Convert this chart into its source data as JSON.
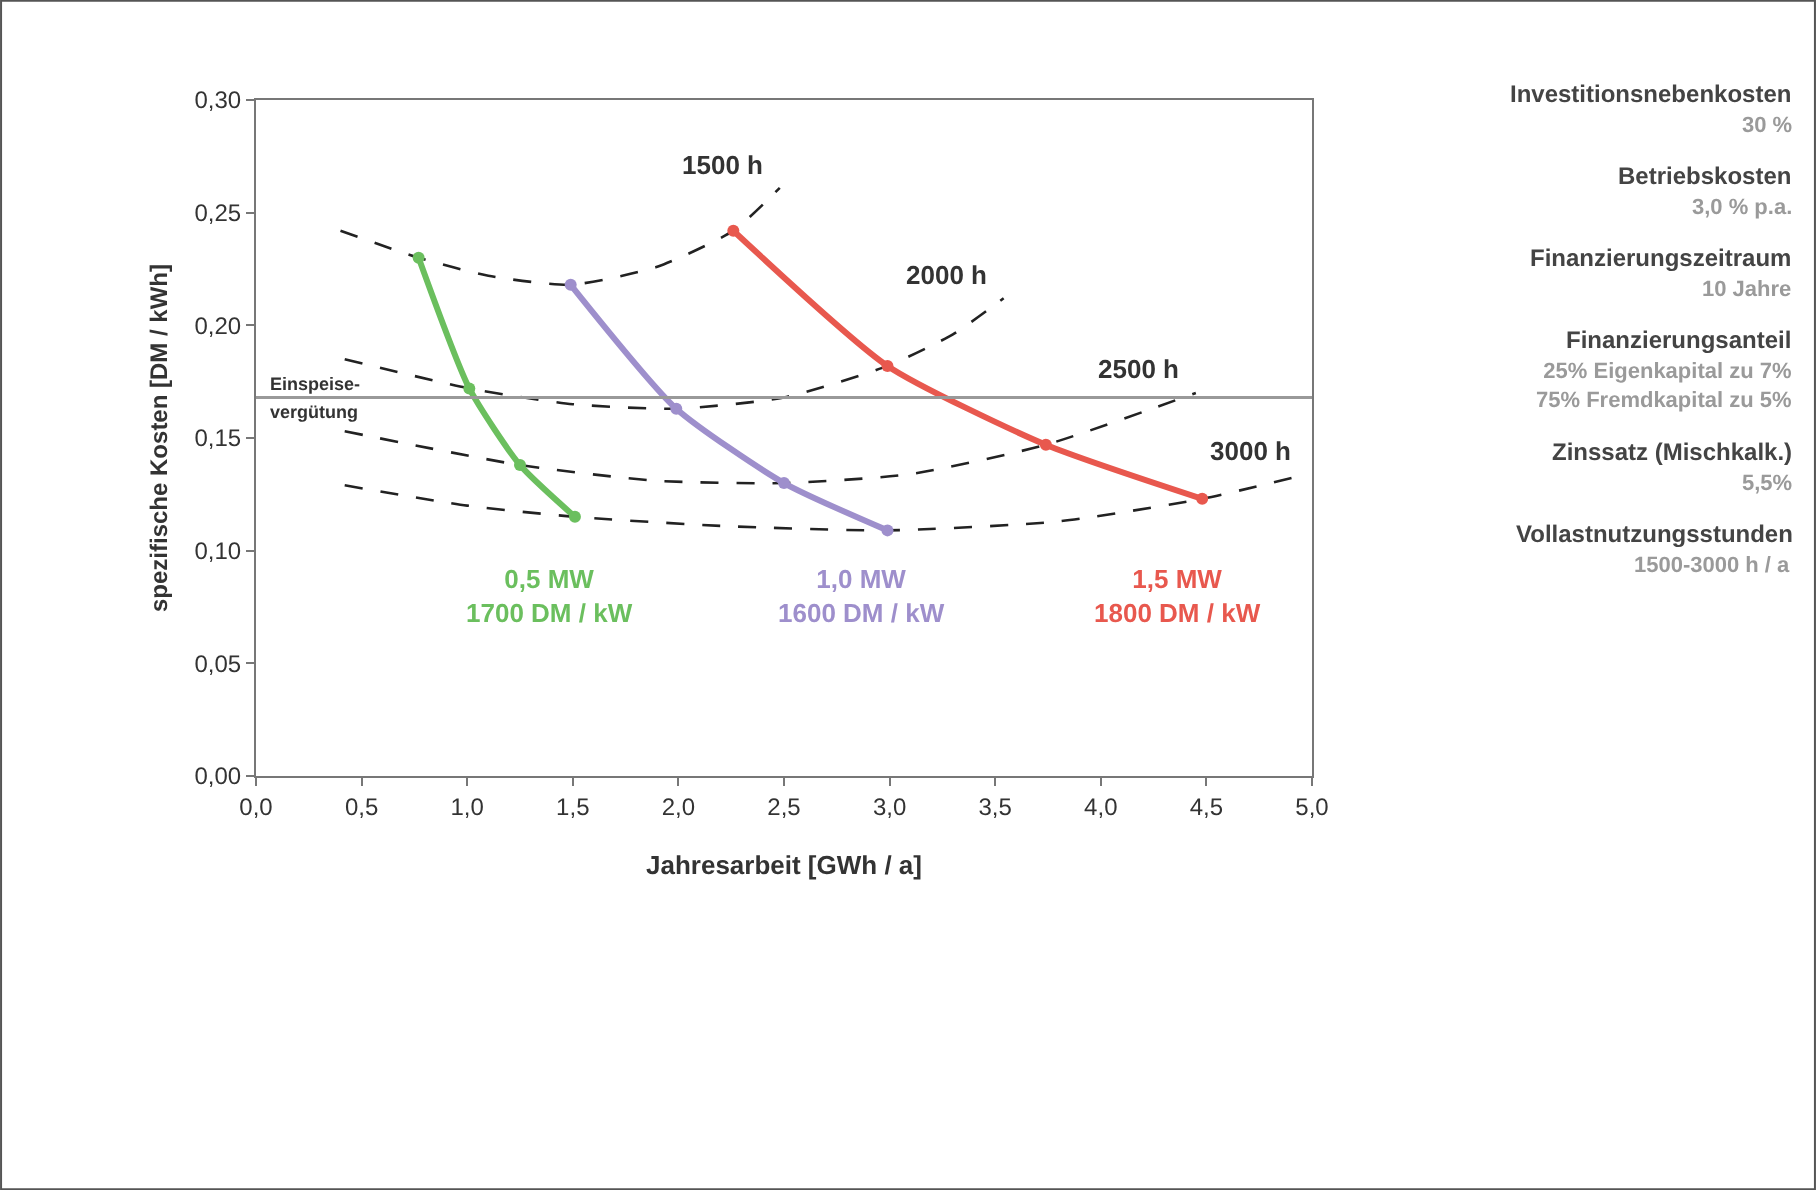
{
  "chart_data": {
    "type": "line",
    "xlabel": "Jahresarbeit [GWh / a]",
    "ylabel": "spezifische Kosten [DM / kWh]",
    "xlim": [
      0,
      5
    ],
    "ylim": [
      0,
      0.3
    ],
    "xticks": [
      {
        "value": 0,
        "label": "0,0"
      },
      {
        "value": 0.5,
        "label": "0,5"
      },
      {
        "value": 1,
        "label": "1,0"
      },
      {
        "value": 1.5,
        "label": "1,5"
      },
      {
        "value": 2,
        "label": "2,0"
      },
      {
        "value": 2.5,
        "label": "2,5"
      },
      {
        "value": 3,
        "label": "3,0"
      },
      {
        "value": 3.5,
        "label": "3,5"
      },
      {
        "value": 4,
        "label": "4,0"
      },
      {
        "value": 4.5,
        "label": "4,5"
      },
      {
        "value": 5,
        "label": "5,0"
      }
    ],
    "yticks": [
      {
        "value": 0,
        "label": "0,00"
      },
      {
        "value": 0.05,
        "label": "0,05"
      },
      {
        "value": 0.1,
        "label": "0,10"
      },
      {
        "value": 0.15,
        "label": "0,15"
      },
      {
        "value": 0.2,
        "label": "0,20"
      },
      {
        "value": 0.25,
        "label": "0,25"
      },
      {
        "value": 0.3,
        "label": "0,30"
      }
    ],
    "legend": false,
    "series": [
      {
        "name": "1500 h",
        "x": [
          0.4,
          0.77,
          1.1,
          1.49,
          1.9,
          2.26,
          2.48
        ],
        "values": [
          0.242,
          0.23,
          0.222,
          0.218,
          0.226,
          0.242,
          0.261
        ],
        "color": "#222222",
        "line_style": "dashed",
        "marker": "none"
      },
      {
        "name": "2000 h",
        "x": [
          0.42,
          1.01,
          1.5,
          1.99,
          2.5,
          2.99,
          3.3,
          3.54
        ],
        "values": [
          0.185,
          0.172,
          0.165,
          0.163,
          0.168,
          0.182,
          0.196,
          0.212
        ],
        "color": "#222222",
        "line_style": "dashed",
        "marker": "none"
      },
      {
        "name": "2500 h",
        "x": [
          0.42,
          1.25,
          1.9,
          2.5,
          3.1,
          3.74,
          4.45
        ],
        "values": [
          0.153,
          0.138,
          0.131,
          0.13,
          0.134,
          0.147,
          0.17
        ],
        "color": "#222222",
        "line_style": "dashed",
        "marker": "none"
      },
      {
        "name": "3000 h",
        "x": [
          0.42,
          1.0,
          1.51,
          2.2,
          2.99,
          3.8,
          4.48,
          4.98
        ],
        "values": [
          0.129,
          0.12,
          0.115,
          0.111,
          0.109,
          0.113,
          0.123,
          0.134
        ],
        "color": "#222222",
        "line_style": "dashed",
        "marker": "none"
      },
      {
        "name": "0,5 MW\n1700 DM / kW",
        "x": [
          0.77,
          1.01,
          1.25,
          1.51
        ],
        "values": [
          0.23,
          0.172,
          0.138,
          0.115
        ],
        "color": "#6bbf5e",
        "line_style": "solid",
        "marker": "circle"
      },
      {
        "name": "1,0 MW\n1600 DM / kW",
        "x": [
          1.49,
          1.99,
          2.5,
          2.99
        ],
        "values": [
          0.218,
          0.163,
          0.13,
          0.109
        ],
        "color": "#9e8fcc",
        "line_style": "solid",
        "marker": "circle"
      },
      {
        "name": "1,5 MW\n1800 DM / kW",
        "x": [
          2.26,
          2.99,
          3.74,
          4.48
        ],
        "values": [
          0.242,
          0.182,
          0.147,
          0.123
        ],
        "color": "#e8584e",
        "line_style": "solid",
        "marker": "circle"
      }
    ],
    "ref_lines": [
      {
        "axis": "y",
        "value": 0.168,
        "label": "Einspeise-\nvergütung",
        "color": "#999999"
      }
    ],
    "annotations": [
      "Investitionsnebenkosten",
      "30 %",
      "Betriebskosten",
      "3,0 % p.a.",
      "Finanzierungszeitraum",
      "10 Jahre",
      "Finanzierungsanteil",
      "25% Eigenkapital zu 7%\n75% Fremdkapital zu 5%",
      "Zinssatz (Mischkalk.)",
      "5,5%",
      "Vollastnutzungsstunden",
      "1500-3000 h / a"
    ]
  }
}
